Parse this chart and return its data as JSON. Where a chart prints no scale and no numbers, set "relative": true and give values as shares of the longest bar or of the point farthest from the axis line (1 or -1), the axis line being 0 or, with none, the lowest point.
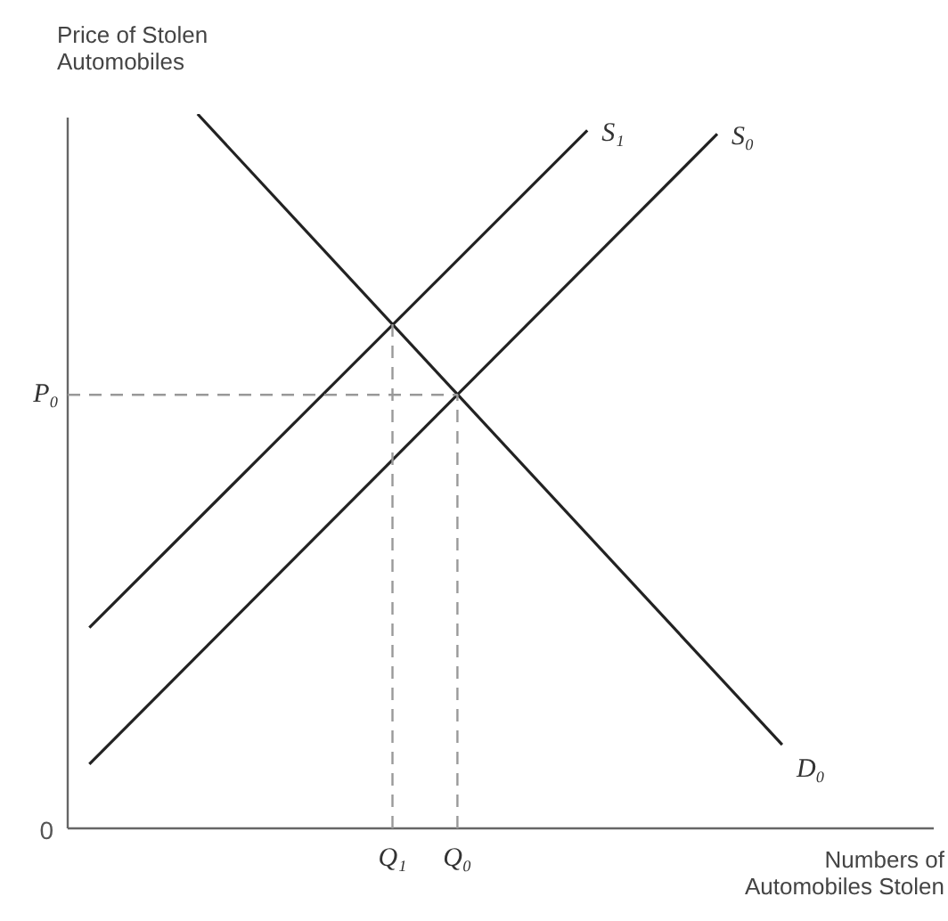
{
  "chart_data": {
    "type": "line",
    "relative": true,
    "xlabel": "Numbers of\nAutomobiles Stolen",
    "ylabel": "Price of Stolen\nAutomobiles",
    "legend": false,
    "marker": "none",
    "categories": [
      null,
      null,
      null,
      null,
      null,
      null,
      null,
      null,
      null,
      null,
      null,
      null,
      null,
      null,
      null,
      "Q₁",
      null,
      null,
      "Q₀",
      null,
      null,
      null,
      null,
      null,
      null,
      null,
      null,
      null,
      null,
      null,
      null,
      null,
      null,
      null,
      null,
      null,
      null,
      null,
      null,
      null,
      null
    ],
    "series": [
      {
        "name": "D₀",
        "color": "#222222",
        "values": [
          null,
          null,
          null,
          null,
          null,
          null,
          1.0,
          null,
          null,
          null,
          null,
          null,
          null,
          null,
          null,
          null,
          null,
          null,
          null,
          null,
          null,
          null,
          null,
          null,
          null,
          null,
          null,
          null,
          null,
          null,
          null,
          null,
          null,
          0.117,
          null,
          null,
          null,
          null,
          null,
          null,
          null
        ]
      },
      {
        "name": "S₁",
        "color": "#222222",
        "values": [
          null,
          0.281,
          null,
          null,
          null,
          null,
          null,
          null,
          null,
          null,
          null,
          null,
          null,
          null,
          null,
          null,
          null,
          null,
          null,
          null,
          null,
          null,
          null,
          null,
          0.977,
          null,
          null,
          null,
          null,
          null,
          null,
          null,
          null,
          null,
          null,
          null,
          null,
          null,
          null,
          null,
          null
        ]
      },
      {
        "name": "S₀",
        "color": "#222222",
        "values": [
          null,
          0.09,
          null,
          null,
          null,
          null,
          null,
          null,
          null,
          null,
          null,
          null,
          null,
          null,
          null,
          null,
          null,
          null,
          null,
          null,
          null,
          null,
          null,
          null,
          null,
          null,
          null,
          null,
          null,
          null,
          0.972,
          null,
          null,
          null,
          null,
          null,
          null,
          null,
          null,
          null,
          null
        ]
      }
    ],
    "ref_lines": [
      {
        "axis": "y",
        "value": 0.607,
        "label": "P₀",
        "color": "#999999",
        "line_style": "dashed"
      },
      {
        "axis": "x",
        "value": "Q₁",
        "color": "#999999",
        "line_style": "dashed"
      },
      {
        "axis": "x",
        "value": "Q₀",
        "color": "#999999",
        "line_style": "dashed"
      }
    ],
    "line_style": "solid",
    "annotations": [
      "0"
    ]
  }
}
